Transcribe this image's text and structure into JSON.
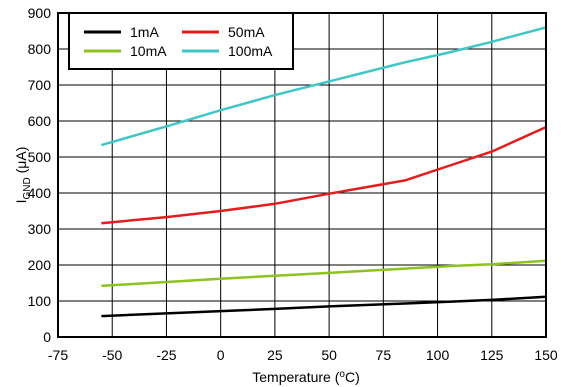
{
  "chart_data": {
    "type": "line",
    "title": "",
    "xlabel": "Temperature (",
    "xlabel_sup": "o",
    "xlabel_suffix": "C)",
    "ylabel": "I",
    "ylabel_sub": "GND",
    "ylabel_suffix": " (μA)",
    "xlim": [
      -75,
      150
    ],
    "ylim": [
      0,
      900
    ],
    "xticks": [
      -75,
      -50,
      -25,
      0,
      25,
      50,
      75,
      100,
      125,
      150
    ],
    "yticks": [
      0,
      100,
      200,
      300,
      400,
      500,
      600,
      700,
      800,
      900
    ],
    "grid": true,
    "legend_position": "top-left",
    "series": [
      {
        "name": "1mA",
        "color": "#000000",
        "x": [
          -55,
          0,
          25,
          50,
          85,
          105,
          125,
          150
        ],
        "y": [
          58,
          72,
          78,
          85,
          93,
          98,
          103,
          112
        ]
      },
      {
        "name": "10mA",
        "color": "#8dc21f",
        "x": [
          -55,
          0,
          25,
          50,
          85,
          105,
          125,
          150
        ],
        "y": [
          142,
          162,
          170,
          178,
          190,
          197,
          202,
          212
        ]
      },
      {
        "name": "50mA",
        "color": "#e31d1d",
        "x": [
          -55,
          -25,
          0,
          25,
          50,
          85,
          105,
          125,
          150
        ],
        "y": [
          316,
          333,
          350,
          370,
          398,
          435,
          475,
          515,
          583
        ]
      },
      {
        "name": "100mA",
        "color": "#3fc6c6",
        "x": [
          -55,
          -25,
          0,
          25,
          50,
          85,
          105,
          125,
          150
        ],
        "y": [
          533,
          585,
          630,
          672,
          710,
          763,
          790,
          820,
          860
        ]
      }
    ]
  }
}
